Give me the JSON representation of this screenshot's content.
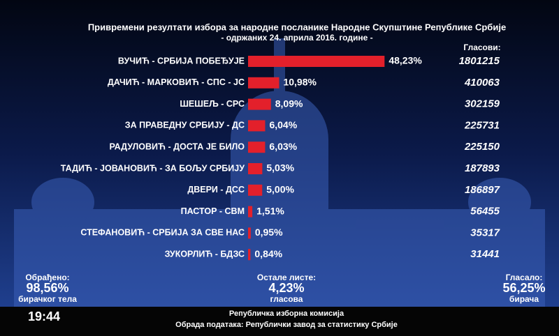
{
  "chart_data": {
    "type": "bar",
    "orientation": "horizontal",
    "title": "Привремени резултати избора за народне посланике Народне Скупштине Републике Србије",
    "subtitle": "- одржаних 24. априла 2016. године -",
    "categories": [
      "ВУЧИЋ - СРБИЈА ПОБЕЂУЈЕ",
      "ДАЧИЋ - МАРКОВИЋ - СПС - ЈС",
      "ШЕШЕЉ - СРС",
      "ЗА ПРАВЕДНУ СРБИЈУ - ДС",
      "РАДУЛОВИЋ - ДОСТА ЈЕ БИЛО",
      "ТАДИЋ - ЈОВАНОВИЋ - ЗА БОЉУ СРБИЈУ",
      "ДВЕРИ - ДСС",
      "ПАСТОР - СВМ",
      "СТЕФАНОВИЋ - СРБИЈА ЗА СВЕ НАС",
      "ЗУКОРЛИЋ - БДЗС"
    ],
    "values": [
      48.23,
      10.98,
      8.09,
      6.04,
      6.03,
      5.03,
      5.0,
      1.51,
      0.95,
      0.84
    ],
    "value_labels": [
      "48,23%",
      "10,98%",
      "8,09%",
      "6,04%",
      "6,03%",
      "5,03%",
      "5,00%",
      "1,51%",
      "0,95%",
      "0,84%"
    ],
    "color": "#e3202b",
    "votes_label": "Гласови:",
    "votes": [
      1801215,
      410063,
      302159,
      225731,
      225150,
      187893,
      186897,
      56455,
      35317,
      31441
    ]
  },
  "footer": {
    "stats": [
      {
        "label": "Обрађено:",
        "value": "98,56%",
        "sub": "бирачког тела"
      },
      {
        "label": "Остале листе:",
        "value": "4,23%",
        "sub": "гласова"
      },
      {
        "label": "Гласало:",
        "value": "56,25%",
        "sub": "бирача"
      }
    ],
    "time": "19:44",
    "line1": "Републичка изборна комисија",
    "line2": "Обрада података: Републички завод за статистику Србије"
  }
}
